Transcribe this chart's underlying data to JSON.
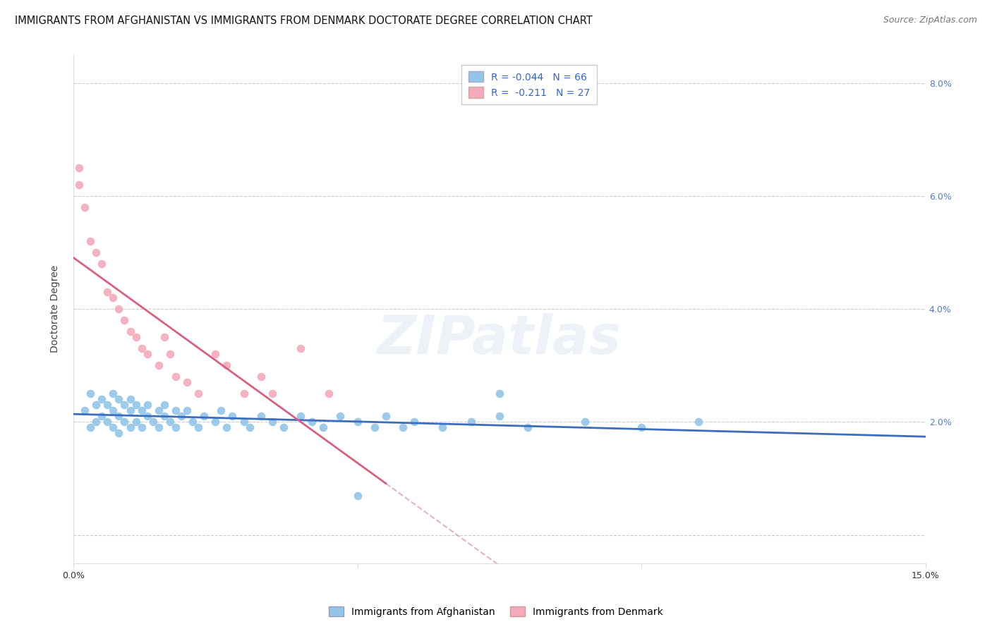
{
  "title": "IMMIGRANTS FROM AFGHANISTAN VS IMMIGRANTS FROM DENMARK DOCTORATE DEGREE CORRELATION CHART",
  "source": "Source: ZipAtlas.com",
  "ylabel": "Doctorate Degree",
  "afg_R": -0.044,
  "afg_N": 66,
  "den_R": -0.211,
  "den_N": 27,
  "afg_color": "#92C5E8",
  "den_color": "#F4AABB",
  "afg_line_color": "#3B6EBF",
  "den_line_color": "#D95F7F",
  "afg_line_dash_color": "#B0B8D0",
  "den_line_dash_color": "#E0A0B0",
  "background_color": "#ffffff",
  "grid_color": "#cccccc",
  "tick_color": "#5577cc",
  "xlim": [
    0.0,
    0.15
  ],
  "ylim": [
    -0.005,
    0.085
  ],
  "xticks": [
    0.0,
    0.05,
    0.1,
    0.15
  ],
  "xticklabels": [
    "0.0%",
    "",
    "",
    "15.0%"
  ],
  "yticks": [
    0.0,
    0.02,
    0.04,
    0.06,
    0.08
  ],
  "yticklabels": [
    "",
    "2.0%",
    "4.0%",
    "6.0%",
    "8.0%"
  ],
  "title_fontsize": 10.5,
  "source_fontsize": 9,
  "label_fontsize": 10,
  "tick_fontsize": 9,
  "legend_fontsize": 10,
  "watermark_text": "ZIPatlas",
  "watermark_alpha": 0.13,
  "watermark_fontsize": 55,
  "afg_x": [
    0.002,
    0.003,
    0.003,
    0.004,
    0.004,
    0.005,
    0.005,
    0.006,
    0.006,
    0.007,
    0.007,
    0.007,
    0.008,
    0.008,
    0.008,
    0.009,
    0.009,
    0.01,
    0.01,
    0.01,
    0.011,
    0.011,
    0.012,
    0.012,
    0.013,
    0.013,
    0.014,
    0.015,
    0.015,
    0.016,
    0.016,
    0.017,
    0.018,
    0.018,
    0.019,
    0.02,
    0.021,
    0.022,
    0.023,
    0.025,
    0.026,
    0.027,
    0.028,
    0.03,
    0.031,
    0.033,
    0.035,
    0.037,
    0.04,
    0.042,
    0.044,
    0.047,
    0.05,
    0.053,
    0.055,
    0.058,
    0.06,
    0.065,
    0.07,
    0.075,
    0.08,
    0.09,
    0.1,
    0.11,
    0.075,
    0.05
  ],
  "afg_y": [
    0.022,
    0.025,
    0.019,
    0.023,
    0.02,
    0.024,
    0.021,
    0.023,
    0.02,
    0.025,
    0.022,
    0.019,
    0.024,
    0.021,
    0.018,
    0.023,
    0.02,
    0.024,
    0.022,
    0.019,
    0.023,
    0.02,
    0.022,
    0.019,
    0.023,
    0.021,
    0.02,
    0.022,
    0.019,
    0.023,
    0.021,
    0.02,
    0.022,
    0.019,
    0.021,
    0.022,
    0.02,
    0.019,
    0.021,
    0.02,
    0.022,
    0.019,
    0.021,
    0.02,
    0.019,
    0.021,
    0.02,
    0.019,
    0.021,
    0.02,
    0.019,
    0.021,
    0.02,
    0.019,
    0.021,
    0.019,
    0.02,
    0.019,
    0.02,
    0.021,
    0.019,
    0.02,
    0.019,
    0.02,
    0.025,
    0.007
  ],
  "den_x": [
    0.001,
    0.001,
    0.002,
    0.003,
    0.004,
    0.005,
    0.006,
    0.007,
    0.008,
    0.009,
    0.01,
    0.011,
    0.012,
    0.013,
    0.015,
    0.016,
    0.017,
    0.018,
    0.02,
    0.022,
    0.025,
    0.027,
    0.03,
    0.033,
    0.035,
    0.04,
    0.045
  ],
  "den_y": [
    0.065,
    0.062,
    0.058,
    0.052,
    0.05,
    0.048,
    0.043,
    0.042,
    0.04,
    0.038,
    0.036,
    0.035,
    0.033,
    0.032,
    0.03,
    0.035,
    0.032,
    0.028,
    0.027,
    0.025,
    0.032,
    0.03,
    0.025,
    0.028,
    0.025,
    0.033,
    0.025
  ]
}
